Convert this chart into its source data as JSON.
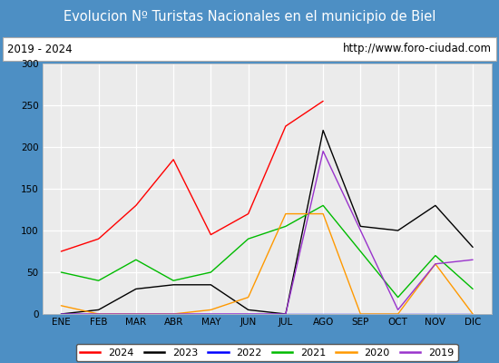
{
  "title": "Evolucion Nº Turistas Nacionales en el municipio de Biel",
  "subtitle_left": "2019 - 2024",
  "subtitle_right": "http://www.foro-ciudad.com",
  "months": [
    "ENE",
    "FEB",
    "MAR",
    "ABR",
    "MAY",
    "JUN",
    "JUL",
    "AGO",
    "SEP",
    "OCT",
    "NOV",
    "DIC"
  ],
  "series": {
    "2024": [
      75,
      90,
      130,
      185,
      95,
      120,
      225,
      255,
      null,
      null,
      null,
      null
    ],
    "2023": [
      0,
      5,
      30,
      35,
      35,
      5,
      0,
      220,
      105,
      100,
      130,
      80
    ],
    "2022": [
      0,
      0,
      0,
      0,
      0,
      0,
      0,
      0,
      0,
      0,
      0,
      0
    ],
    "2021": [
      50,
      40,
      65,
      40,
      50,
      90,
      105,
      130,
      75,
      20,
      70,
      30
    ],
    "2020": [
      10,
      0,
      0,
      0,
      5,
      20,
      120,
      120,
      0,
      0,
      60,
      0
    ],
    "2019": [
      0,
      0,
      0,
      0,
      0,
      0,
      0,
      195,
      100,
      5,
      60,
      65
    ]
  },
  "colors": {
    "2024": "#ff0000",
    "2023": "#000000",
    "2022": "#0000ff",
    "2021": "#00bb00",
    "2020": "#ff9900",
    "2019": "#9933cc"
  },
  "ylim": [
    0,
    300
  ],
  "yticks": [
    0,
    50,
    100,
    150,
    200,
    250,
    300
  ],
  "title_bg_color": "#4d8fc4",
  "title_text_color": "#ffffff",
  "plot_bg_color": "#ebebeb",
  "grid_color": "#ffffff",
  "outer_bg_color": "#4d8fc4",
  "inner_bg_color": "#ffffff",
  "subtitle_border_color": "#aaaaaa"
}
